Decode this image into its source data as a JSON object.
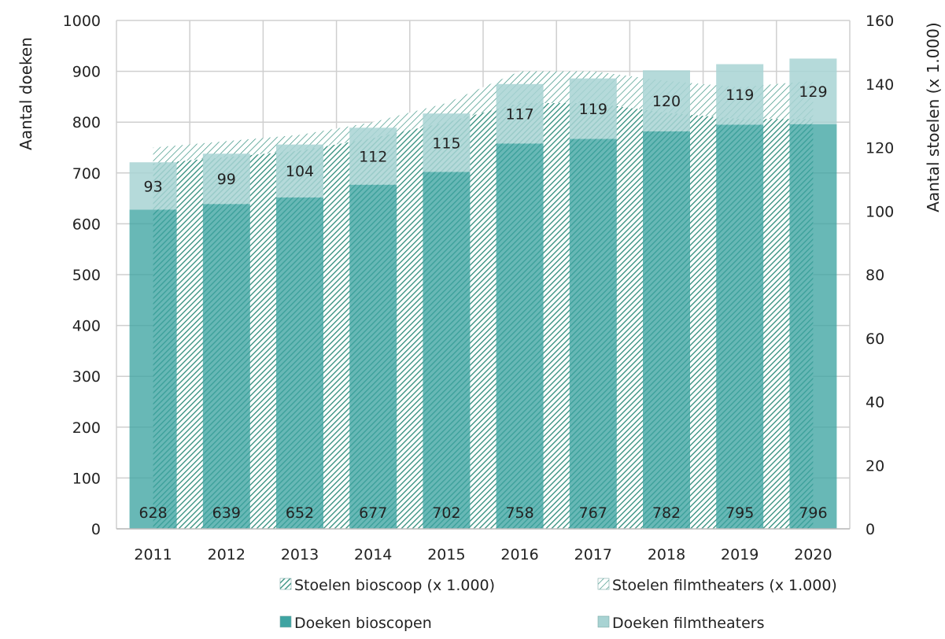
{
  "chart_data": {
    "type": "bar",
    "categories": [
      "2011",
      "2012",
      "2013",
      "2014",
      "2015",
      "2016",
      "2017",
      "2018",
      "2019",
      "2020"
    ],
    "series": [
      {
        "name": "Doeken bioscopen",
        "axis": "left",
        "stacked": true,
        "values": [
          628,
          639,
          652,
          677,
          702,
          758,
          767,
          782,
          795,
          796
        ],
        "color": "#3ea4a2"
      },
      {
        "name": "Doeken filmtheaters",
        "axis": "left",
        "stacked": true,
        "values": [
          93,
          99,
          104,
          112,
          115,
          117,
          119,
          120,
          119,
          129
        ],
        "color": "#a8d3d3"
      },
      {
        "name": "Stoelen bioscoop (x 1.000)",
        "axis": "right",
        "type": "area",
        "stacked": true,
        "values": [
          115,
          117,
          119,
          123,
          128,
          134,
          134,
          131,
          129,
          129
        ],
        "color": "#2e8c7a",
        "pattern": "diagonal-dense"
      },
      {
        "name": "Stoelen filmtheaters (x 1.000)",
        "axis": "right",
        "type": "area",
        "stacked": true,
        "values": [
          5,
          5,
          5,
          5,
          6,
          10,
          10,
          10,
          10,
          12
        ],
        "color": "#2e8c7a",
        "pattern": "diagonal-sparse"
      }
    ],
    "ylabel": "Aantal doeken",
    "y2label": "Aantal stoelen (x 1.000)",
    "ylim": [
      0,
      1000
    ],
    "y2lim": [
      0,
      160
    ],
    "yticks": [
      "0",
      "100",
      "200",
      "300",
      "400",
      "500",
      "600",
      "700",
      "800",
      "900",
      "1000"
    ],
    "y2ticks": [
      "0",
      "20",
      "40",
      "60",
      "80",
      "100",
      "120",
      "140",
      "160"
    ],
    "grid": true,
    "legend_position": "bottom"
  }
}
